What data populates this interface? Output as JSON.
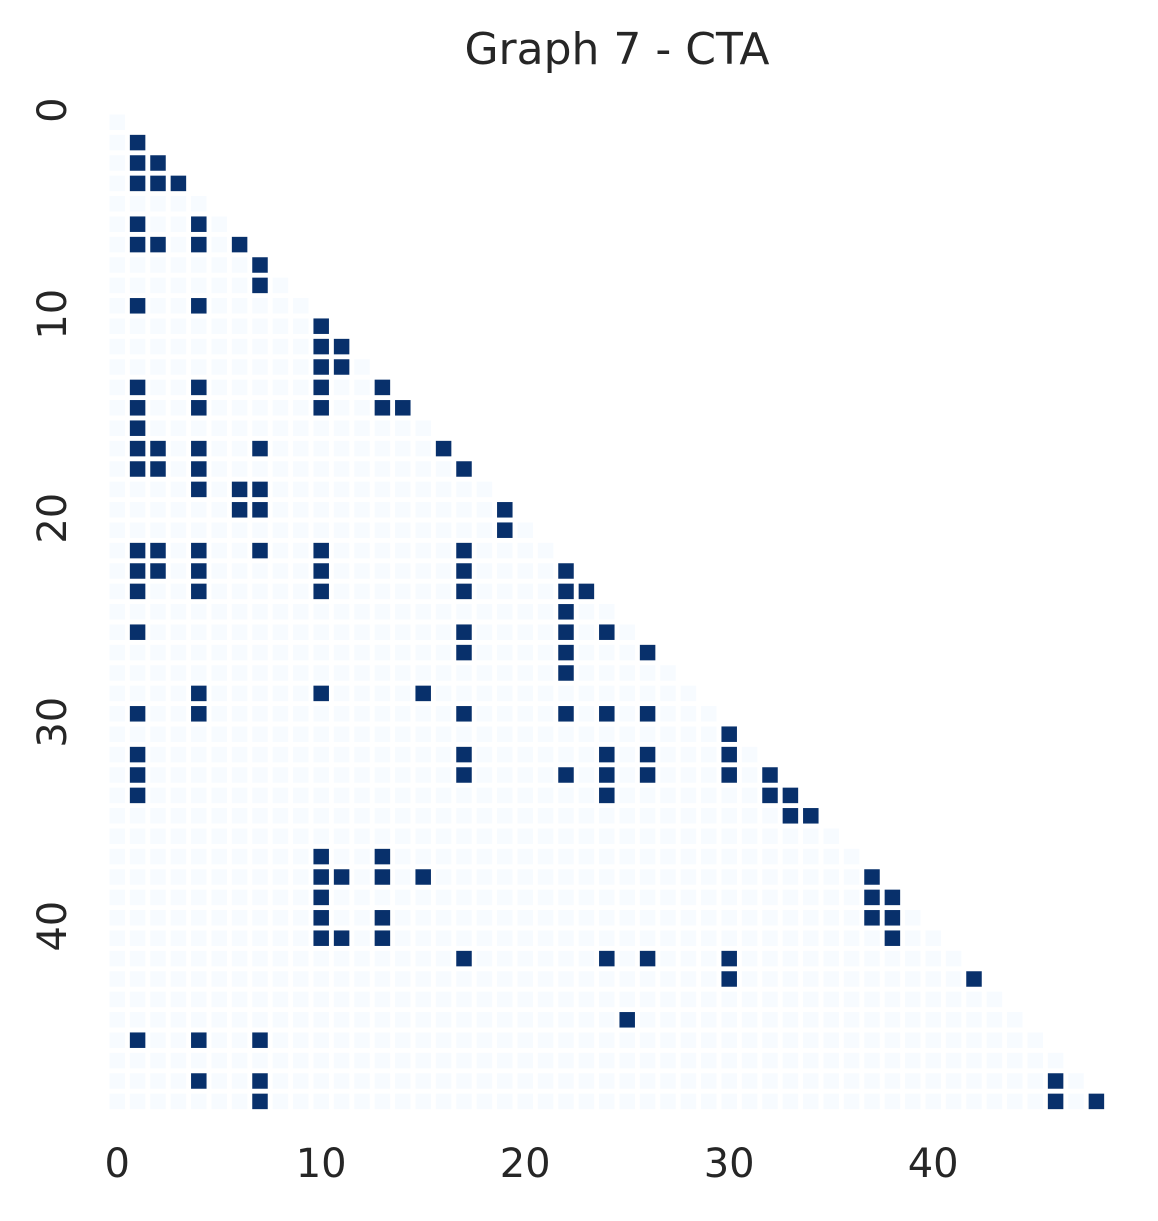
{
  "chart_data": {
    "type": "heatmap",
    "title": "Graph 7 - CTA",
    "colors": [
      "#f7fbff",
      "#08306b"
    ],
    "xticks": [
      0,
      10,
      20,
      30,
      40
    ],
    "yticks": [
      0,
      10,
      20,
      30,
      40
    ],
    "values": [
      [
        0
      ],
      [
        0,
        1
      ],
      [
        0,
        1,
        1
      ],
      [
        0,
        1,
        1,
        1
      ],
      [
        0,
        0,
        0,
        0,
        0
      ],
      [
        0,
        1,
        0,
        0,
        1,
        0
      ],
      [
        0,
        1,
        1,
        0,
        1,
        0,
        1
      ],
      [
        0,
        0,
        0,
        0,
        0,
        0,
        0,
        1
      ],
      [
        0,
        0,
        0,
        0,
        0,
        0,
        0,
        1,
        0
      ],
      [
        0,
        1,
        0,
        0,
        1,
        0,
        0,
        0,
        0,
        0
      ],
      [
        0,
        0,
        0,
        0,
        0,
        0,
        0,
        0,
        0,
        0,
        1
      ],
      [
        0,
        0,
        0,
        0,
        0,
        0,
        0,
        0,
        0,
        0,
        1,
        1
      ],
      [
        0,
        0,
        0,
        0,
        0,
        0,
        0,
        0,
        0,
        0,
        1,
        1,
        0
      ],
      [
        0,
        1,
        0,
        0,
        1,
        0,
        0,
        0,
        0,
        0,
        1,
        0,
        0,
        1
      ],
      [
        0,
        1,
        0,
        0,
        1,
        0,
        0,
        0,
        0,
        0,
        1,
        0,
        0,
        1,
        1
      ],
      [
        0,
        1,
        0,
        0,
        0,
        0,
        0,
        0,
        0,
        0,
        0,
        0,
        0,
        0,
        0,
        0
      ],
      [
        0,
        1,
        1,
        0,
        1,
        0,
        0,
        1,
        0,
        0,
        0,
        0,
        0,
        0,
        0,
        0,
        1
      ],
      [
        0,
        1,
        1,
        0,
        1,
        0,
        0,
        0,
        0,
        0,
        0,
        0,
        0,
        0,
        0,
        0,
        0,
        1
      ],
      [
        0,
        0,
        0,
        0,
        1,
        0,
        1,
        1,
        0,
        0,
        0,
        0,
        0,
        0,
        0,
        0,
        0,
        0,
        0
      ],
      [
        0,
        0,
        0,
        0,
        0,
        0,
        1,
        1,
        0,
        0,
        0,
        0,
        0,
        0,
        0,
        0,
        0,
        0,
        0,
        1
      ],
      [
        0,
        0,
        0,
        0,
        0,
        0,
        0,
        0,
        0,
        0,
        0,
        0,
        0,
        0,
        0,
        0,
        0,
        0,
        0,
        1,
        0
      ],
      [
        0,
        1,
        1,
        0,
        1,
        0,
        0,
        1,
        0,
        0,
        1,
        0,
        0,
        0,
        0,
        0,
        0,
        1,
        0,
        0,
        0,
        0
      ],
      [
        0,
        1,
        1,
        0,
        1,
        0,
        0,
        0,
        0,
        0,
        1,
        0,
        0,
        0,
        0,
        0,
        0,
        1,
        0,
        0,
        0,
        0,
        1
      ],
      [
        0,
        1,
        0,
        0,
        1,
        0,
        0,
        0,
        0,
        0,
        1,
        0,
        0,
        0,
        0,
        0,
        0,
        1,
        0,
        0,
        0,
        0,
        1,
        1
      ],
      [
        0,
        0,
        0,
        0,
        0,
        0,
        0,
        0,
        0,
        0,
        0,
        0,
        0,
        0,
        0,
        0,
        0,
        0,
        0,
        0,
        0,
        0,
        1,
        0,
        0
      ],
      [
        0,
        1,
        0,
        0,
        0,
        0,
        0,
        0,
        0,
        0,
        0,
        0,
        0,
        0,
        0,
        0,
        0,
        1,
        0,
        0,
        0,
        0,
        1,
        0,
        1,
        0
      ],
      [
        0,
        0,
        0,
        0,
        0,
        0,
        0,
        0,
        0,
        0,
        0,
        0,
        0,
        0,
        0,
        0,
        0,
        1,
        0,
        0,
        0,
        0,
        1,
        0,
        0,
        0,
        1
      ],
      [
        0,
        0,
        0,
        0,
        0,
        0,
        0,
        0,
        0,
        0,
        0,
        0,
        0,
        0,
        0,
        0,
        0,
        0,
        0,
        0,
        0,
        0,
        1,
        0,
        0,
        0,
        0,
        0
      ],
      [
        0,
        0,
        0,
        0,
        1,
        0,
        0,
        0,
        0,
        0,
        1,
        0,
        0,
        0,
        0,
        1,
        0,
        0,
        0,
        0,
        0,
        0,
        0,
        0,
        0,
        0,
        0,
        0,
        0
      ],
      [
        0,
        1,
        0,
        0,
        1,
        0,
        0,
        0,
        0,
        0,
        0,
        0,
        0,
        0,
        0,
        0,
        0,
        1,
        0,
        0,
        0,
        0,
        1,
        0,
        1,
        0,
        1,
        0,
        0,
        0
      ],
      [
        0,
        0,
        0,
        0,
        0,
        0,
        0,
        0,
        0,
        0,
        0,
        0,
        0,
        0,
        0,
        0,
        0,
        0,
        0,
        0,
        0,
        0,
        0,
        0,
        0,
        0,
        0,
        0,
        0,
        0,
        1
      ],
      [
        0,
        1,
        0,
        0,
        0,
        0,
        0,
        0,
        0,
        0,
        0,
        0,
        0,
        0,
        0,
        0,
        0,
        1,
        0,
        0,
        0,
        0,
        0,
        0,
        1,
        0,
        1,
        0,
        0,
        0,
        1,
        0
      ],
      [
        0,
        1,
        0,
        0,
        0,
        0,
        0,
        0,
        0,
        0,
        0,
        0,
        0,
        0,
        0,
        0,
        0,
        1,
        0,
        0,
        0,
        0,
        1,
        0,
        1,
        0,
        1,
        0,
        0,
        0,
        1,
        0,
        1
      ],
      [
        0,
        1,
        0,
        0,
        0,
        0,
        0,
        0,
        0,
        0,
        0,
        0,
        0,
        0,
        0,
        0,
        0,
        0,
        0,
        0,
        0,
        0,
        0,
        0,
        1,
        0,
        0,
        0,
        0,
        0,
        0,
        0,
        1,
        1
      ],
      [
        0,
        0,
        0,
        0,
        0,
        0,
        0,
        0,
        0,
        0,
        0,
        0,
        0,
        0,
        0,
        0,
        0,
        0,
        0,
        0,
        0,
        0,
        0,
        0,
        0,
        0,
        0,
        0,
        0,
        0,
        0,
        0,
        0,
        1,
        1
      ],
      [
        0,
        0,
        0,
        0,
        0,
        0,
        0,
        0,
        0,
        0,
        0,
        0,
        0,
        0,
        0,
        0,
        0,
        0,
        0,
        0,
        0,
        0,
        0,
        0,
        0,
        0,
        0,
        0,
        0,
        0,
        0,
        0,
        0,
        0,
        0,
        0
      ],
      [
        0,
        0,
        0,
        0,
        0,
        0,
        0,
        0,
        0,
        0,
        1,
        0,
        0,
        1,
        0,
        0,
        0,
        0,
        0,
        0,
        0,
        0,
        0,
        0,
        0,
        0,
        0,
        0,
        0,
        0,
        0,
        0,
        0,
        0,
        0,
        0,
        0
      ],
      [
        0,
        0,
        0,
        0,
        0,
        0,
        0,
        0,
        0,
        0,
        1,
        1,
        0,
        1,
        0,
        1,
        0,
        0,
        0,
        0,
        0,
        0,
        0,
        0,
        0,
        0,
        0,
        0,
        0,
        0,
        0,
        0,
        0,
        0,
        0,
        0,
        0,
        1
      ],
      [
        0,
        0,
        0,
        0,
        0,
        0,
        0,
        0,
        0,
        0,
        1,
        0,
        0,
        0,
        0,
        0,
        0,
        0,
        0,
        0,
        0,
        0,
        0,
        0,
        0,
        0,
        0,
        0,
        0,
        0,
        0,
        0,
        0,
        0,
        0,
        0,
        0,
        1,
        1
      ],
      [
        0,
        0,
        0,
        0,
        0,
        0,
        0,
        0,
        0,
        0,
        1,
        0,
        0,
        1,
        0,
        0,
        0,
        0,
        0,
        0,
        0,
        0,
        0,
        0,
        0,
        0,
        0,
        0,
        0,
        0,
        0,
        0,
        0,
        0,
        0,
        0,
        0,
        1,
        1,
        0
      ],
      [
        0,
        0,
        0,
        0,
        0,
        0,
        0,
        0,
        0,
        0,
        1,
        1,
        0,
        1,
        0,
        0,
        0,
        0,
        0,
        0,
        0,
        0,
        0,
        0,
        0,
        0,
        0,
        0,
        0,
        0,
        0,
        0,
        0,
        0,
        0,
        0,
        0,
        0,
        1,
        0,
        0
      ],
      [
        0,
        0,
        0,
        0,
        0,
        0,
        0,
        0,
        0,
        0,
        0,
        0,
        0,
        0,
        0,
        0,
        0,
        1,
        0,
        0,
        0,
        0,
        0,
        0,
        1,
        0,
        1,
        0,
        0,
        0,
        1,
        0,
        0,
        0,
        0,
        0,
        0,
        0,
        0,
        0,
        0,
        0
      ],
      [
        0,
        0,
        0,
        0,
        0,
        0,
        0,
        0,
        0,
        0,
        0,
        0,
        0,
        0,
        0,
        0,
        0,
        0,
        0,
        0,
        0,
        0,
        0,
        0,
        0,
        0,
        0,
        0,
        0,
        0,
        1,
        0,
        0,
        0,
        0,
        0,
        0,
        0,
        0,
        0,
        0,
        0,
        1
      ],
      [
        0,
        0,
        0,
        0,
        0,
        0,
        0,
        0,
        0,
        0,
        0,
        0,
        0,
        0,
        0,
        0,
        0,
        0,
        0,
        0,
        0,
        0,
        0,
        0,
        0,
        0,
        0,
        0,
        0,
        0,
        0,
        0,
        0,
        0,
        0,
        0,
        0,
        0,
        0,
        0,
        0,
        0,
        0,
        0
      ],
      [
        0,
        0,
        0,
        0,
        0,
        0,
        0,
        0,
        0,
        0,
        0,
        0,
        0,
        0,
        0,
        0,
        0,
        0,
        0,
        0,
        0,
        0,
        0,
        0,
        0,
        1,
        0,
        0,
        0,
        0,
        0,
        0,
        0,
        0,
        0,
        0,
        0,
        0,
        0,
        0,
        0,
        0,
        0,
        0,
        0
      ],
      [
        0,
        1,
        0,
        0,
        1,
        0,
        0,
        1,
        0,
        0,
        0,
        0,
        0,
        0,
        0,
        0,
        0,
        0,
        0,
        0,
        0,
        0,
        0,
        0,
        0,
        0,
        0,
        0,
        0,
        0,
        0,
        0,
        0,
        0,
        0,
        0,
        0,
        0,
        0,
        0,
        0,
        0,
        0,
        0,
        0,
        0
      ],
      [
        0,
        0,
        0,
        0,
        0,
        0,
        0,
        0,
        0,
        0,
        0,
        0,
        0,
        0,
        0,
        0,
        0,
        0,
        0,
        0,
        0,
        0,
        0,
        0,
        0,
        0,
        0,
        0,
        0,
        0,
        0,
        0,
        0,
        0,
        0,
        0,
        0,
        0,
        0,
        0,
        0,
        0,
        0,
        0,
        0,
        0,
        0
      ],
      [
        0,
        0,
        0,
        0,
        1,
        0,
        0,
        1,
        0,
        0,
        0,
        0,
        0,
        0,
        0,
        0,
        0,
        0,
        0,
        0,
        0,
        0,
        0,
        0,
        0,
        0,
        0,
        0,
        0,
        0,
        0,
        0,
        0,
        0,
        0,
        0,
        0,
        0,
        0,
        0,
        0,
        0,
        0,
        0,
        0,
        0,
        1,
        0
      ],
      [
        0,
        0,
        0,
        0,
        0,
        0,
        0,
        1,
        0,
        0,
        0,
        0,
        0,
        0,
        0,
        0,
        0,
        0,
        0,
        0,
        0,
        0,
        0,
        0,
        0,
        0,
        0,
        0,
        0,
        0,
        0,
        0,
        0,
        0,
        0,
        0,
        0,
        0,
        0,
        0,
        0,
        0,
        0,
        0,
        0,
        0,
        1,
        0,
        1
      ]
    ]
  }
}
